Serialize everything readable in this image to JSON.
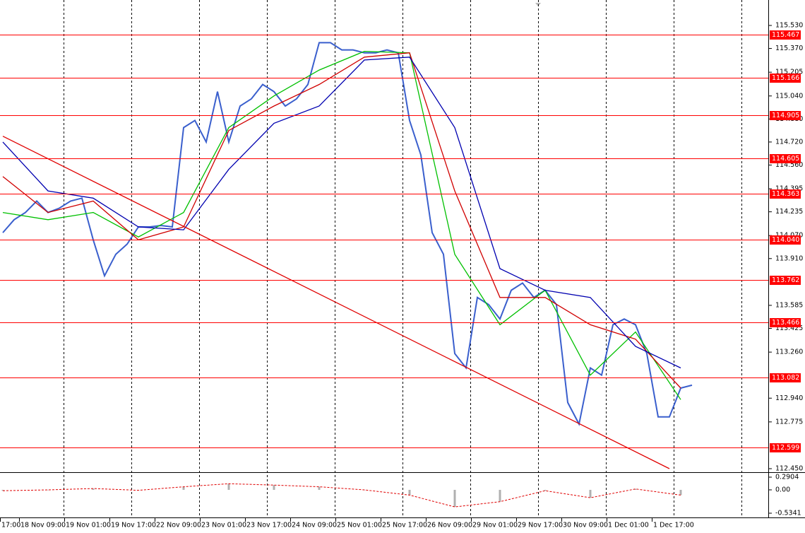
{
  "chart_data": [
    {
      "type": "line",
      "xlim": [
        0,
        61
      ],
      "ylim": [
        112.45,
        115.53
      ],
      "yticks": [
        {
          "value": 115.53,
          "label": "115.530"
        },
        {
          "value": 115.37,
          "label": "115.370"
        },
        115.205,
        {
          "value": 115.04,
          "label": "115.040"
        },
        {
          "value": 114.88,
          "label": "114.880"
        },
        {
          "value": 114.72,
          "label": "114.720"
        },
        {
          "value": 114.56,
          "label": "114.560"
        },
        114.395,
        114.235,
        {
          "value": 114.07,
          "label": "114.070"
        },
        {
          "value": 113.91,
          "label": "113.910"
        },
        113.585,
        113.425,
        {
          "value": 113.26,
          "label": "113.260"
        },
        {
          "value": 112.94,
          "label": "112.940"
        },
        112.775,
        {
          "value": 112.45,
          "label": "112.450"
        }
      ],
      "time_labels": [
        "17:00",
        "18 Nov 09:00",
        "19 Nov 01:00",
        "19 Nov 17:00",
        "22 Nov 09:00",
        "23 Nov 01:00",
        "23 Nov 17:00",
        "24 Nov 09:00",
        "25 Nov 01:00",
        "25 Nov 17:00",
        "26 Nov 09:00",
        "29 Nov 01:00",
        "29 Nov 17:00",
        "30 Nov 09:00",
        "1 Dec 01:00",
        "1 Dec 17:00"
      ],
      "levels": {
        "color": "#ff0000",
        "values": [
          115.467,
          115.166,
          114.905,
          114.605,
          114.363,
          114.04,
          113.762,
          113.466,
          113.082,
          112.599
        ],
        "value_labels": [
          "115.467",
          "115.166",
          "114.905",
          "114.605",
          "114.363",
          "114.040",
          "113.762",
          "113.466",
          "113.082",
          "112.599"
        ]
      },
      "series": [
        {
          "color": "#3a5fcd",
          "x": [
            0,
            1,
            2,
            3,
            4,
            5,
            6,
            7,
            8,
            9,
            10,
            11,
            12,
            13,
            14,
            15,
            16,
            17,
            18,
            19,
            20,
            21,
            22,
            23,
            24,
            25,
            26,
            27,
            28,
            29,
            30,
            31,
            32,
            33,
            34,
            35,
            36,
            37,
            38,
            39,
            40,
            41,
            42,
            43,
            44,
            45,
            46,
            47,
            48,
            49,
            50,
            51,
            52,
            53,
            54,
            55,
            56,
            57,
            58,
            59,
            60,
            61
          ],
          "values": [
            114.09,
            114.18,
            114.23,
            114.31,
            114.23,
            114.26,
            114.31,
            114.33,
            114.04,
            113.79,
            113.94,
            114.01,
            114.13,
            114.13,
            114.14,
            114.13,
            114.82,
            114.87,
            114.72,
            115.07,
            114.72,
            114.97,
            115.02,
            115.12,
            115.07,
            114.97,
            115.02,
            115.12,
            115.41,
            115.41,
            115.36,
            115.36,
            115.34,
            115.34,
            115.36,
            115.34,
            114.87,
            114.63,
            114.09,
            113.94,
            113.25,
            113.15,
            113.64,
            113.59,
            113.49,
            113.69,
            113.74,
            113.64,
            113.69,
            113.59,
            112.91,
            112.76,
            113.15,
            113.1,
            113.45,
            113.49,
            113.45,
            113.25,
            112.81,
            112.81,
            113.01,
            113.03
          ]
        },
        {
          "color": "#00c000",
          "x": [
            0,
            4,
            8,
            12,
            16,
            20,
            24,
            28,
            32,
            36,
            40,
            44,
            48,
            52,
            56,
            60
          ],
          "values": [
            114.23,
            114.18,
            114.23,
            114.06,
            114.23,
            114.82,
            115.04,
            115.22,
            115.35,
            115.34,
            113.94,
            113.45,
            113.69,
            113.1,
            113.4,
            112.93
          ]
        },
        {
          "color": "#d00000",
          "x": [
            0,
            4,
            8,
            12,
            16,
            20,
            24,
            28,
            32,
            36,
            40,
            44,
            48,
            52,
            56,
            60
          ],
          "values": [
            114.48,
            114.23,
            114.31,
            114.04,
            114.13,
            114.8,
            114.97,
            115.12,
            115.31,
            115.34,
            114.38,
            113.64,
            113.64,
            113.45,
            113.35,
            113.01
          ]
        },
        {
          "color": "#0000b0",
          "x": [
            0,
            4,
            8,
            12,
            16,
            20,
            24,
            28,
            32,
            36,
            40,
            44,
            48,
            52,
            56,
            60
          ],
          "values": [
            114.72,
            114.38,
            114.33,
            114.13,
            114.11,
            114.53,
            114.85,
            114.97,
            115.29,
            115.31,
            114.82,
            113.84,
            113.69,
            113.64,
            113.3,
            113.15
          ]
        },
        {
          "color": "#e00000",
          "x": [
            0,
            59
          ],
          "values": [
            114.76,
            112.45
          ]
        }
      ]
    },
    {
      "type": "line",
      "ylim": [
        -0.5341,
        0.2904
      ],
      "yticks": [
        0.2904,
        {
          "value": 0,
          "label": "0.00"
        },
        -0.5341
      ],
      "series": [
        {
          "color": "#e00000",
          "bar_color": "#b0b0b0",
          "x": [
            0,
            4,
            8,
            12,
            16,
            20,
            24,
            28,
            32,
            36,
            40,
            44,
            48,
            52,
            56,
            60
          ],
          "values": [
            -0.02,
            0,
            0.03,
            -0.01,
            0.07,
            0.14,
            0.11,
            0.07,
            0,
            -0.12,
            -0.39,
            -0.27,
            -0.02,
            -0.18,
            0.02,
            -0.12
          ]
        }
      ]
    }
  ]
}
